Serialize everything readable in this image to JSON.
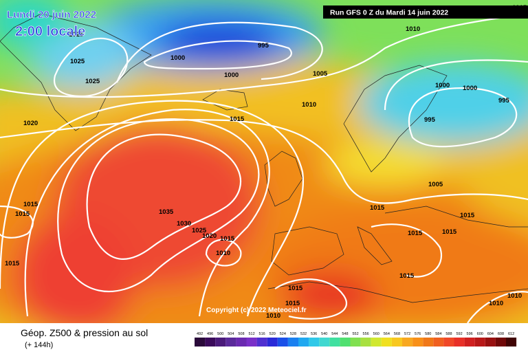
{
  "header": {
    "date": "Lundi 20 juin 2022",
    "time": "2:00 locale",
    "run": "Run GFS 0 Z du Mardi 14 juin 2022"
  },
  "copyright": "Copyright (c) 2022 Meteociel.fr",
  "footer": {
    "title": "Géop. Z500 & pression au sol",
    "lead": "(+ 144h)"
  },
  "isobar_labels": [
    "1015",
    "1010",
    "995",
    "1000",
    "1025",
    "1025",
    "1025",
    "1000",
    "1005",
    "1000",
    "1000",
    "995",
    "1010",
    "1015",
    "995",
    "1020",
    "1005",
    "1015",
    "1015",
    "1015",
    "1015",
    "1035",
    "1030",
    "1025",
    "1020",
    "1015",
    "1010",
    "1015",
    "1015",
    "1015",
    "1015",
    "1015",
    "1015",
    "1010",
    "1010",
    "1010"
  ],
  "colorbar_labels": [
    492,
    496,
    500,
    504,
    508,
    512,
    516,
    520,
    524,
    528,
    532,
    536,
    540,
    544,
    548,
    552,
    556,
    560,
    564,
    568,
    572,
    576,
    580,
    584,
    588,
    592,
    596,
    600,
    604,
    608,
    612
  ]
}
